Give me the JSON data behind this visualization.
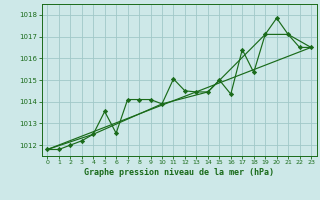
{
  "title": "Graphe pression niveau de la mer (hPa)",
  "background_color": "#cde8e8",
  "grid_color": "#a0c8c8",
  "line_color": "#1a6b1a",
  "marker_color": "#1a6b1a",
  "xlim": [
    -0.5,
    23.5
  ],
  "ylim": [
    1011.5,
    1018.5
  ],
  "yticks": [
    1012,
    1013,
    1014,
    1015,
    1016,
    1017,
    1018
  ],
  "xticks": [
    0,
    1,
    2,
    3,
    4,
    5,
    6,
    7,
    8,
    9,
    10,
    11,
    12,
    13,
    14,
    15,
    16,
    17,
    18,
    19,
    20,
    21,
    22,
    23
  ],
  "series_main_x": [
    0,
    1,
    2,
    3,
    4,
    5,
    6,
    7,
    8,
    9,
    10,
    11,
    12,
    13,
    14,
    15,
    16,
    17,
    18,
    19,
    20,
    21,
    22,
    23
  ],
  "series_main_y": [
    1011.8,
    1011.8,
    1012.0,
    1012.2,
    1012.5,
    1013.55,
    1012.55,
    1014.1,
    1014.1,
    1014.1,
    1013.9,
    1015.05,
    1014.5,
    1014.45,
    1014.45,
    1015.0,
    1014.35,
    1016.4,
    1015.35,
    1017.1,
    1017.85,
    1017.1,
    1016.5,
    1016.5
  ],
  "series_trend_x": [
    0,
    23
  ],
  "series_trend_y": [
    1011.8,
    1016.5
  ],
  "series_envelope_x": [
    0,
    4,
    10,
    14,
    19,
    21,
    23
  ],
  "series_envelope_y": [
    1011.8,
    1012.5,
    1013.9,
    1014.45,
    1017.1,
    1017.1,
    1016.5
  ]
}
